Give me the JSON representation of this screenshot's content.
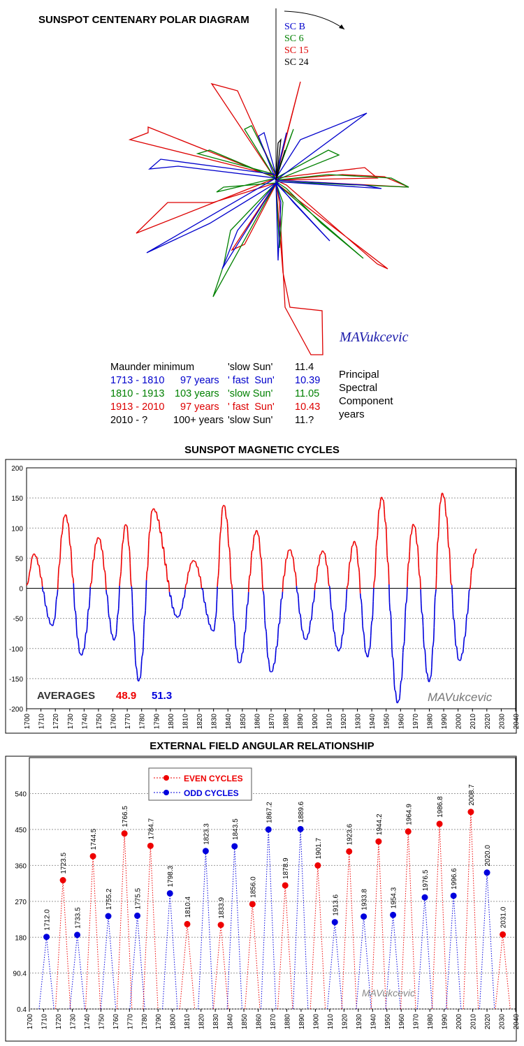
{
  "polar": {
    "title": "SUNSPOT CENTENARY POLAR DIAGRAM",
    "legend": [
      {
        "label": "SC B",
        "color": "#0000cc"
      },
      {
        "label": "SC 6",
        "color": "#008000"
      },
      {
        "label": "SC 15",
        "color": "#dd0000"
      },
      {
        "label": "SC 24",
        "color": "#000000"
      }
    ],
    "signature": "MAVukcevic",
    "table": [
      {
        "period": "Maunder minimum",
        "span": "",
        "sun": "'slow Sun'",
        "value": "11.4",
        "color": "#000000"
      },
      {
        "period": "1713 - 1810",
        "span": "97 years",
        "sun": "' fast  Sun'",
        "value": "10.39",
        "color": "#0000cc"
      },
      {
        "period": "1810 - 1913",
        "span": "103 years",
        "sun": "'slow Sun'",
        "value": "11.05",
        "color": "#008000"
      },
      {
        "period": "1913 - 2010",
        "span": "97 years",
        "sun": "' fast  Sun'",
        "value": "10.43",
        "color": "#dd0000"
      },
      {
        "period": "2010 - ?",
        "span": "100+ years",
        "sun": "'slow Sun'",
        "value": "11.?",
        "color": "#000000"
      }
    ],
    "component_label": [
      "Principal",
      "Spectral",
      "Component",
      "years"
    ]
  },
  "magnetic": {
    "title": "SUNSPOT MAGNETIC CYCLES",
    "averages_label": "AVERAGES",
    "average_even": "48.9",
    "average_odd": "51.3",
    "signature": "MAVukcevic"
  },
  "external": {
    "title": "EXTERNAL FIELD ANGULAR RELATIONSHIP",
    "signature": "MAVukcevic"
  },
  "colors": {
    "even": "#ee0000",
    "odd": "#0000dd",
    "green": "#008000"
  },
  "chart_data": [
    {
      "type": "line",
      "title": "SUNSPOT MAGNETIC CYCLES",
      "xlim": [
        1700,
        2040
      ],
      "ylim": [
        -200,
        200
      ],
      "x_ticks": [
        1700,
        1710,
        1720,
        1730,
        1740,
        1750,
        1760,
        1770,
        1780,
        1790,
        1800,
        1810,
        1820,
        1830,
        1840,
        1850,
        1860,
        1870,
        1880,
        1890,
        1900,
        1910,
        1920,
        1930,
        1940,
        1950,
        1960,
        1970,
        1980,
        1990,
        2000,
        2010,
        2020,
        2030,
        2040
      ],
      "y_ticks": [
        200,
        150,
        100,
        50,
        0,
        -50,
        -100,
        -150,
        -200
      ],
      "grid": true,
      "series": [
        {
          "peaks": [
            [
              1700,
              5
            ],
            [
              1705,
              57
            ],
            [
              1718,
              -62
            ],
            [
              1727,
              122
            ],
            [
              1738,
              -111
            ],
            [
              1750,
              84
            ],
            [
              1761,
              -86
            ],
            [
              1769,
              106
            ],
            [
              1778,
              -154
            ],
            [
              1788,
              132
            ],
            [
              1805,
              -48
            ],
            [
              1816,
              46
            ],
            [
              1830,
              -71
            ],
            [
              1837,
              138
            ],
            [
              1848,
              -124
            ],
            [
              1860,
              96
            ],
            [
              1870,
              -139
            ],
            [
              1883,
              64
            ],
            [
              1894,
              -85
            ],
            [
              1906,
              62
            ],
            [
              1917,
              -104
            ],
            [
              1928,
              78
            ],
            [
              1937,
              -114
            ],
            [
              1947,
              151
            ],
            [
              1958,
              -190
            ],
            [
              1969,
              106
            ],
            [
              1980,
              -155
            ],
            [
              1989,
              158
            ],
            [
              2001,
              -120
            ],
            [
              2013,
              65
            ]
          ]
        }
      ]
    },
    {
      "type": "scatter",
      "title": "EXTERNAL FIELD ANGULAR RELATIONSHIP",
      "xlim": [
        1700,
        2040
      ],
      "y_ticks": [
        "0.4",
        "90.4",
        "180",
        "270",
        "360",
        "450",
        "540"
      ],
      "series": [
        {
          "name": "EVEN  CYCLES",
          "points": [
            [
              1723.5,
              323
            ],
            [
              1744.5,
              383
            ],
            [
              1766.5,
              440
            ],
            [
              1784.7,
              409
            ],
            [
              1810.4,
              213
            ],
            [
              1833.9,
              211
            ],
            [
              1856.0,
              263
            ],
            [
              1878.9,
              310
            ],
            [
              1901.7,
              360
            ],
            [
              1923.6,
              395
            ],
            [
              1944.2,
              420
            ],
            [
              1964.9,
              445
            ],
            [
              1986.8,
              464
            ],
            [
              2008.7,
              494
            ],
            [
              2031.0,
              187
            ]
          ]
        },
        {
          "name": "ODD CYCLES",
          "points": [
            [
              1712.0,
              181
            ],
            [
              1733.5,
              186
            ],
            [
              1755.2,
              233
            ],
            [
              1775.5,
              234
            ],
            [
              1798.3,
              290
            ],
            [
              1823.3,
              396
            ],
            [
              1843.5,
              408
            ],
            [
              1867.2,
              450
            ],
            [
              1889.6,
              451
            ],
            [
              1913.6,
              218
            ],
            [
              1933.8,
              232
            ],
            [
              1954.3,
              236
            ],
            [
              1976.5,
              280
            ],
            [
              1996.6,
              284
            ],
            [
              2020.0,
              342
            ]
          ]
        }
      ]
    }
  ]
}
